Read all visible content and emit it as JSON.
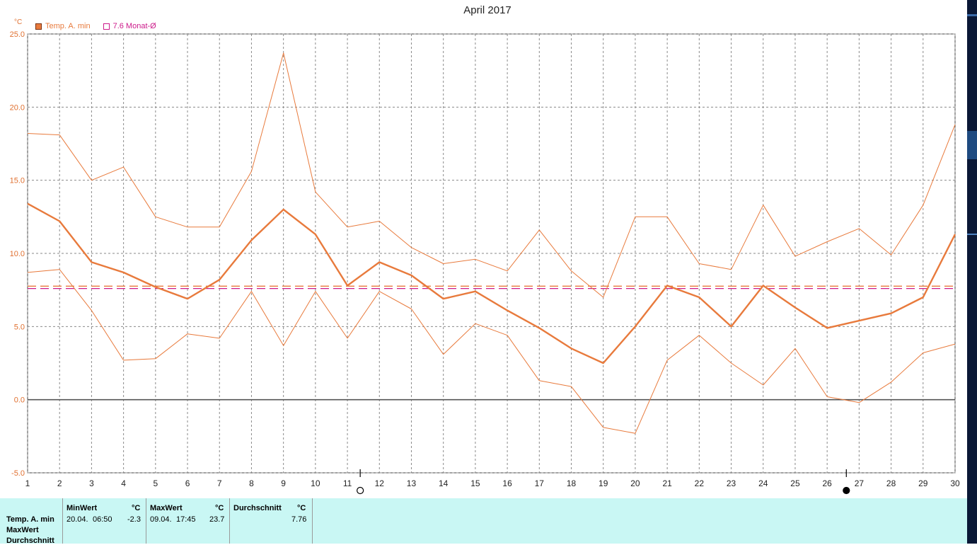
{
  "title": "April 2017",
  "unit": "°C",
  "legend": [
    {
      "label": "Temp. A. min",
      "color": "#e87a3c",
      "filled": true
    },
    {
      "label": "7.6 Monat-Ø",
      "color": "#cc1a8a",
      "filled": false
    }
  ],
  "chart_data": {
    "type": "line",
    "x": [
      1,
      2,
      3,
      4,
      5,
      6,
      7,
      8,
      9,
      10,
      11,
      12,
      13,
      14,
      15,
      16,
      17,
      18,
      19,
      20,
      21,
      22,
      23,
      24,
      25,
      26,
      27,
      28,
      29,
      30
    ],
    "ylim": [
      -5,
      25
    ],
    "yticks": [
      "25.0",
      "20.0",
      "15.0",
      "10.0",
      "5.0",
      "0.0",
      "-5.0"
    ],
    "ytick_values": [
      25,
      20,
      15,
      10,
      5,
      0,
      -5
    ],
    "grid": true,
    "series": [
      {
        "role": "main",
        "color": "#e87a3c",
        "values": [
          13.4,
          12.2,
          9.4,
          8.7,
          7.7,
          6.9,
          8.2,
          10.9,
          13.0,
          11.3,
          7.8,
          9.4,
          8.5,
          6.9,
          7.4,
          6.1,
          4.9,
          3.5,
          2.5,
          5.0,
          7.8,
          7.0,
          5.0,
          7.8,
          6.3,
          4.9,
          5.4,
          5.9,
          7.0,
          11.3
        ]
      },
      {
        "role": "max",
        "color": "#e87a3c",
        "values": [
          18.2,
          18.1,
          15.0,
          15.9,
          12.5,
          11.8,
          11.8,
          15.6,
          23.7,
          14.2,
          11.8,
          12.2,
          10.4,
          9.3,
          9.6,
          8.8,
          11.6,
          8.8,
          7.0,
          12.5,
          12.5,
          9.3,
          8.9,
          13.3,
          9.8,
          10.8,
          11.7,
          9.9,
          13.3,
          18.8
        ]
      },
      {
        "role": "min",
        "color": "#e87a3c",
        "values": [
          8.7,
          8.9,
          6.1,
          2.7,
          2.8,
          4.5,
          4.2,
          7.4,
          3.7,
          7.4,
          4.2,
          7.4,
          6.2,
          3.1,
          5.2,
          4.4,
          1.3,
          0.9,
          -1.9,
          -2.3,
          2.7,
          4.4,
          2.5,
          1.0,
          3.5,
          0.2,
          -0.2,
          1.2,
          3.2,
          3.8
        ]
      }
    ],
    "hlines": [
      {
        "value": 7.76,
        "color": "#e87a3c",
        "dash": true
      },
      {
        "value": 7.6,
        "color": "#cc1a8a",
        "dash": true
      }
    ],
    "zero_line": 0,
    "moon_phases": [
      {
        "x": 11.4,
        "phase": "full"
      },
      {
        "x": 26.6,
        "phase": "new"
      }
    ]
  },
  "summary": {
    "row_labels": [
      "Temp. A. min",
      "MaxWert",
      "Durchschnitt"
    ],
    "min": {
      "header": "MinWert",
      "unit": "°C",
      "date": "20.04.",
      "time": "06:50",
      "value": "-2.3"
    },
    "max": {
      "header": "MaxWert",
      "unit": "°C",
      "date": "09.04.",
      "time": "17:45",
      "value": "23.7"
    },
    "avg": {
      "header": "Durchschnitt",
      "unit": "°C",
      "value": "7.76"
    }
  }
}
